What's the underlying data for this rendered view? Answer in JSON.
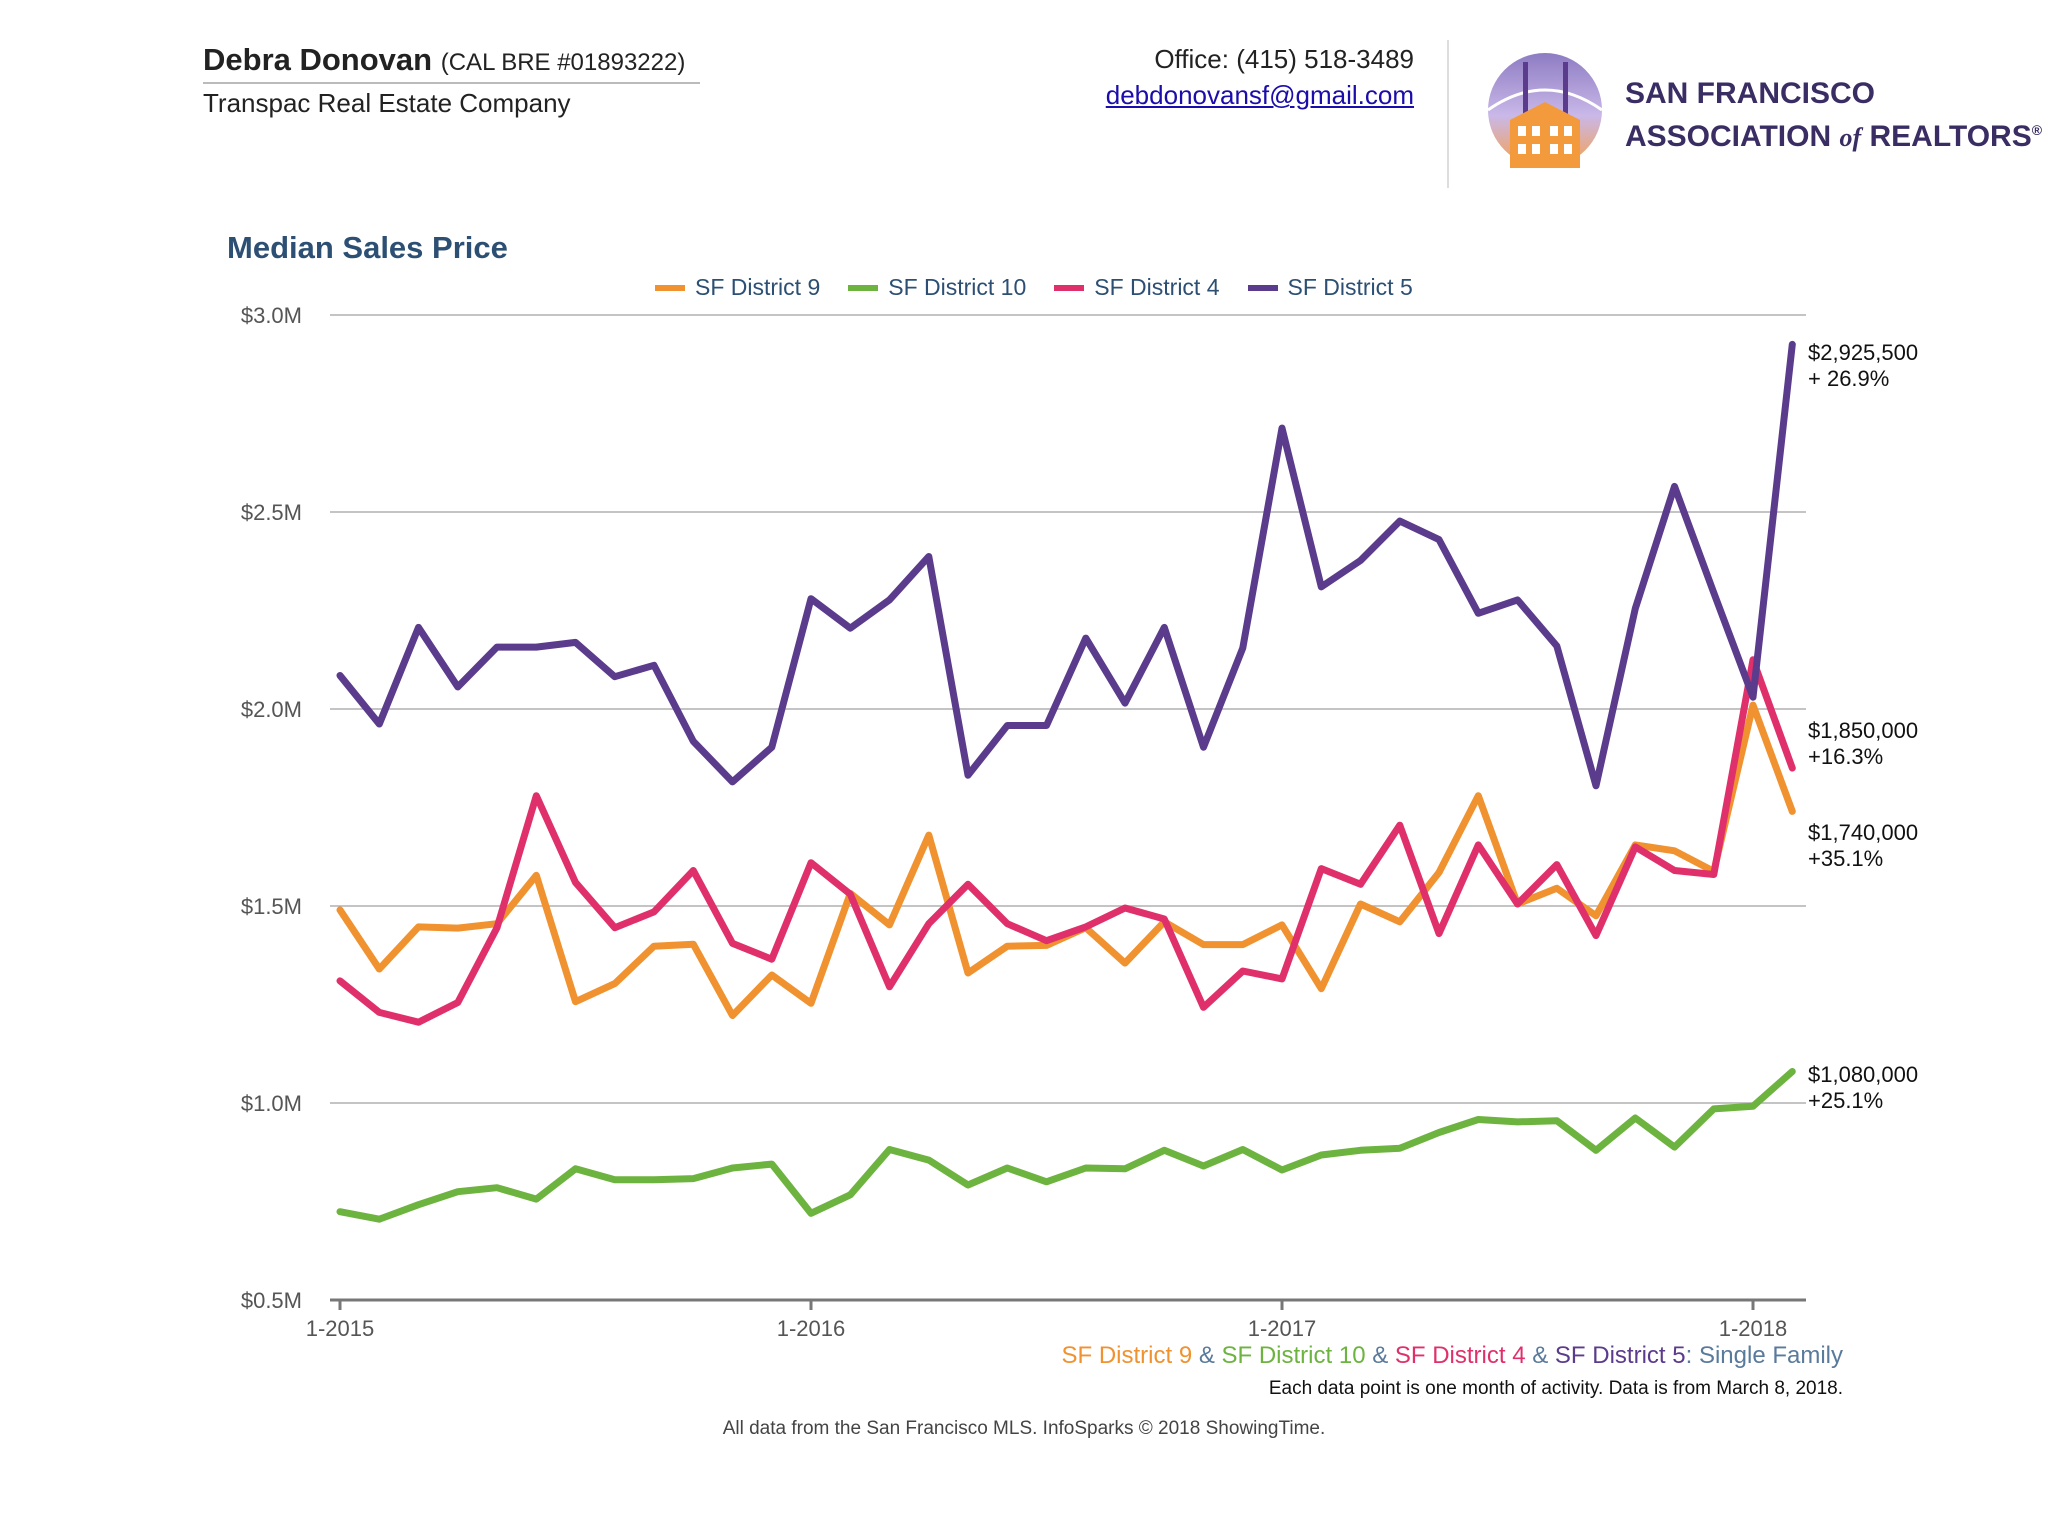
{
  "header": {
    "agent_name": "Debra Donovan",
    "license": "(CAL BRE #01893222)",
    "company": "Transpac Real Estate Company",
    "office": "Office: (415) 518-3489",
    "email": "debdonovansf@gmail.com",
    "logo_line1": "SAN FRANCISCO",
    "logo_line2a": "ASSOCIATION",
    "logo_line2b": "of",
    "logo_line2c": "REALTORS",
    "logo_reg": "®"
  },
  "chart_data": {
    "type": "line",
    "title": "Median Sales Price",
    "xlabel": "",
    "ylabel": "",
    "ylim": [
      500000,
      3000000
    ],
    "yticks": [
      500000,
      1000000,
      1500000,
      2000000,
      2500000,
      3000000
    ],
    "ytick_labels": [
      "$0.5M",
      "$1.0M",
      "$1.5M",
      "$2.0M",
      "$2.5M",
      "$3.0M"
    ],
    "xticks": [
      0,
      12,
      24,
      36
    ],
    "xtick_labels": [
      "1-2015",
      "1-2016",
      "1-2017",
      "1-2018"
    ],
    "x": [
      "2015-01",
      "2015-02",
      "2015-03",
      "2015-04",
      "2015-05",
      "2015-06",
      "2015-07",
      "2015-08",
      "2015-09",
      "2015-10",
      "2015-11",
      "2015-12",
      "2016-01",
      "2016-02",
      "2016-03",
      "2016-04",
      "2016-05",
      "2016-06",
      "2016-07",
      "2016-08",
      "2016-09",
      "2016-10",
      "2016-11",
      "2016-12",
      "2017-01",
      "2017-02",
      "2017-03",
      "2017-04",
      "2017-05",
      "2017-06",
      "2017-07",
      "2017-08",
      "2017-09",
      "2017-10",
      "2017-11",
      "2017-12",
      "2018-01",
      "2018-02"
    ],
    "grid": true,
    "legend_position": "top",
    "series": [
      {
        "name": "SF District 9",
        "color": "#f0922f",
        "values": [
          1490000,
          1340000,
          1447000,
          1444000,
          1455000,
          1578000,
          1257000,
          1303000,
          1398000,
          1403000,
          1222000,
          1325000,
          1253000,
          1532000,
          1452000,
          1680000,
          1330000,
          1398000,
          1400000,
          1445000,
          1355000,
          1460000,
          1402000,
          1402000,
          1452000,
          1290000,
          1505000,
          1460000,
          1585000,
          1780000,
          1505000,
          1545000,
          1475000,
          1655000,
          1640000,
          1588000,
          2010000,
          1740000
        ]
      },
      {
        "name": "SF District 10",
        "color": "#6db33f",
        "values": [
          724000,
          705000,
          742000,
          775000,
          785000,
          756000,
          833000,
          805000,
          805000,
          808000,
          835000,
          845000,
          720000,
          767000,
          882000,
          855000,
          792000,
          835000,
          800000,
          835000,
          833000,
          880000,
          840000,
          882000,
          830000,
          868000,
          880000,
          885000,
          925000,
          958000,
          952000,
          955000,
          880000,
          962000,
          888000,
          985000,
          992000,
          1080000
        ]
      },
      {
        "name": "SF District 4",
        "color": "#e0306b",
        "values": [
          1310000,
          1230000,
          1205000,
          1255000,
          1445000,
          1780000,
          1560000,
          1445000,
          1485000,
          1590000,
          1405000,
          1365000,
          1610000,
          1530000,
          1295000,
          1455000,
          1555000,
          1455000,
          1412000,
          1447000,
          1495000,
          1467000,
          1243000,
          1335000,
          1315000,
          1595000,
          1555000,
          1705000,
          1430000,
          1655000,
          1505000,
          1605000,
          1425000,
          1650000,
          1590000,
          1580000,
          2125000,
          1850000
        ]
      },
      {
        "name": "SF District 5",
        "color": "#5b3b8c",
        "values": [
          2085000,
          1962000,
          2207000,
          2056000,
          2157000,
          2157000,
          2169000,
          2082000,
          2111000,
          1918000,
          1815000,
          1903000,
          2280000,
          2205000,
          2277000,
          2387000,
          1832000,
          1958000,
          1958000,
          2180000,
          2015000,
          2207000,
          1903000,
          2155000,
          2713000,
          2310000,
          2377000,
          2477000,
          2430000,
          2243000,
          2277000,
          2160000,
          1805000,
          2255000,
          2565000,
          2295000,
          2030000,
          2925500
        ]
      }
    ],
    "annotations": [
      {
        "series": "SF District 5",
        "value": "$2,925,500",
        "change": "+ 26.9%"
      },
      {
        "series": "SF District 4",
        "value": "$1,850,000",
        "change": "+16.3%"
      },
      {
        "series": "SF District 9",
        "value": "$1,740,000",
        "change": "+35.1%"
      },
      {
        "series": "SF District 10",
        "value": "$1,080,000",
        "change": "+25.1%"
      }
    ]
  },
  "footer": {
    "series_caption": [
      {
        "text": "SF District 9",
        "color": "#f0922f"
      },
      {
        "text": " & ",
        "color": "#5a7a9c"
      },
      {
        "text": "SF District 10",
        "color": "#6db33f"
      },
      {
        "text": " & ",
        "color": "#5a7a9c"
      },
      {
        "text": "SF District 4",
        "color": "#e0306b"
      },
      {
        "text": " & ",
        "color": "#5a7a9c"
      },
      {
        "text": "SF District 5",
        "color": "#5b3b8c"
      },
      {
        "text": ": Single Family",
        "color": "#5a7a9c"
      }
    ],
    "note": "Each data point is one month of activity. Data is from March 8, 2018.",
    "source": "All data from the San Francisco MLS. InfoSparks © 2018 ShowingTime."
  }
}
